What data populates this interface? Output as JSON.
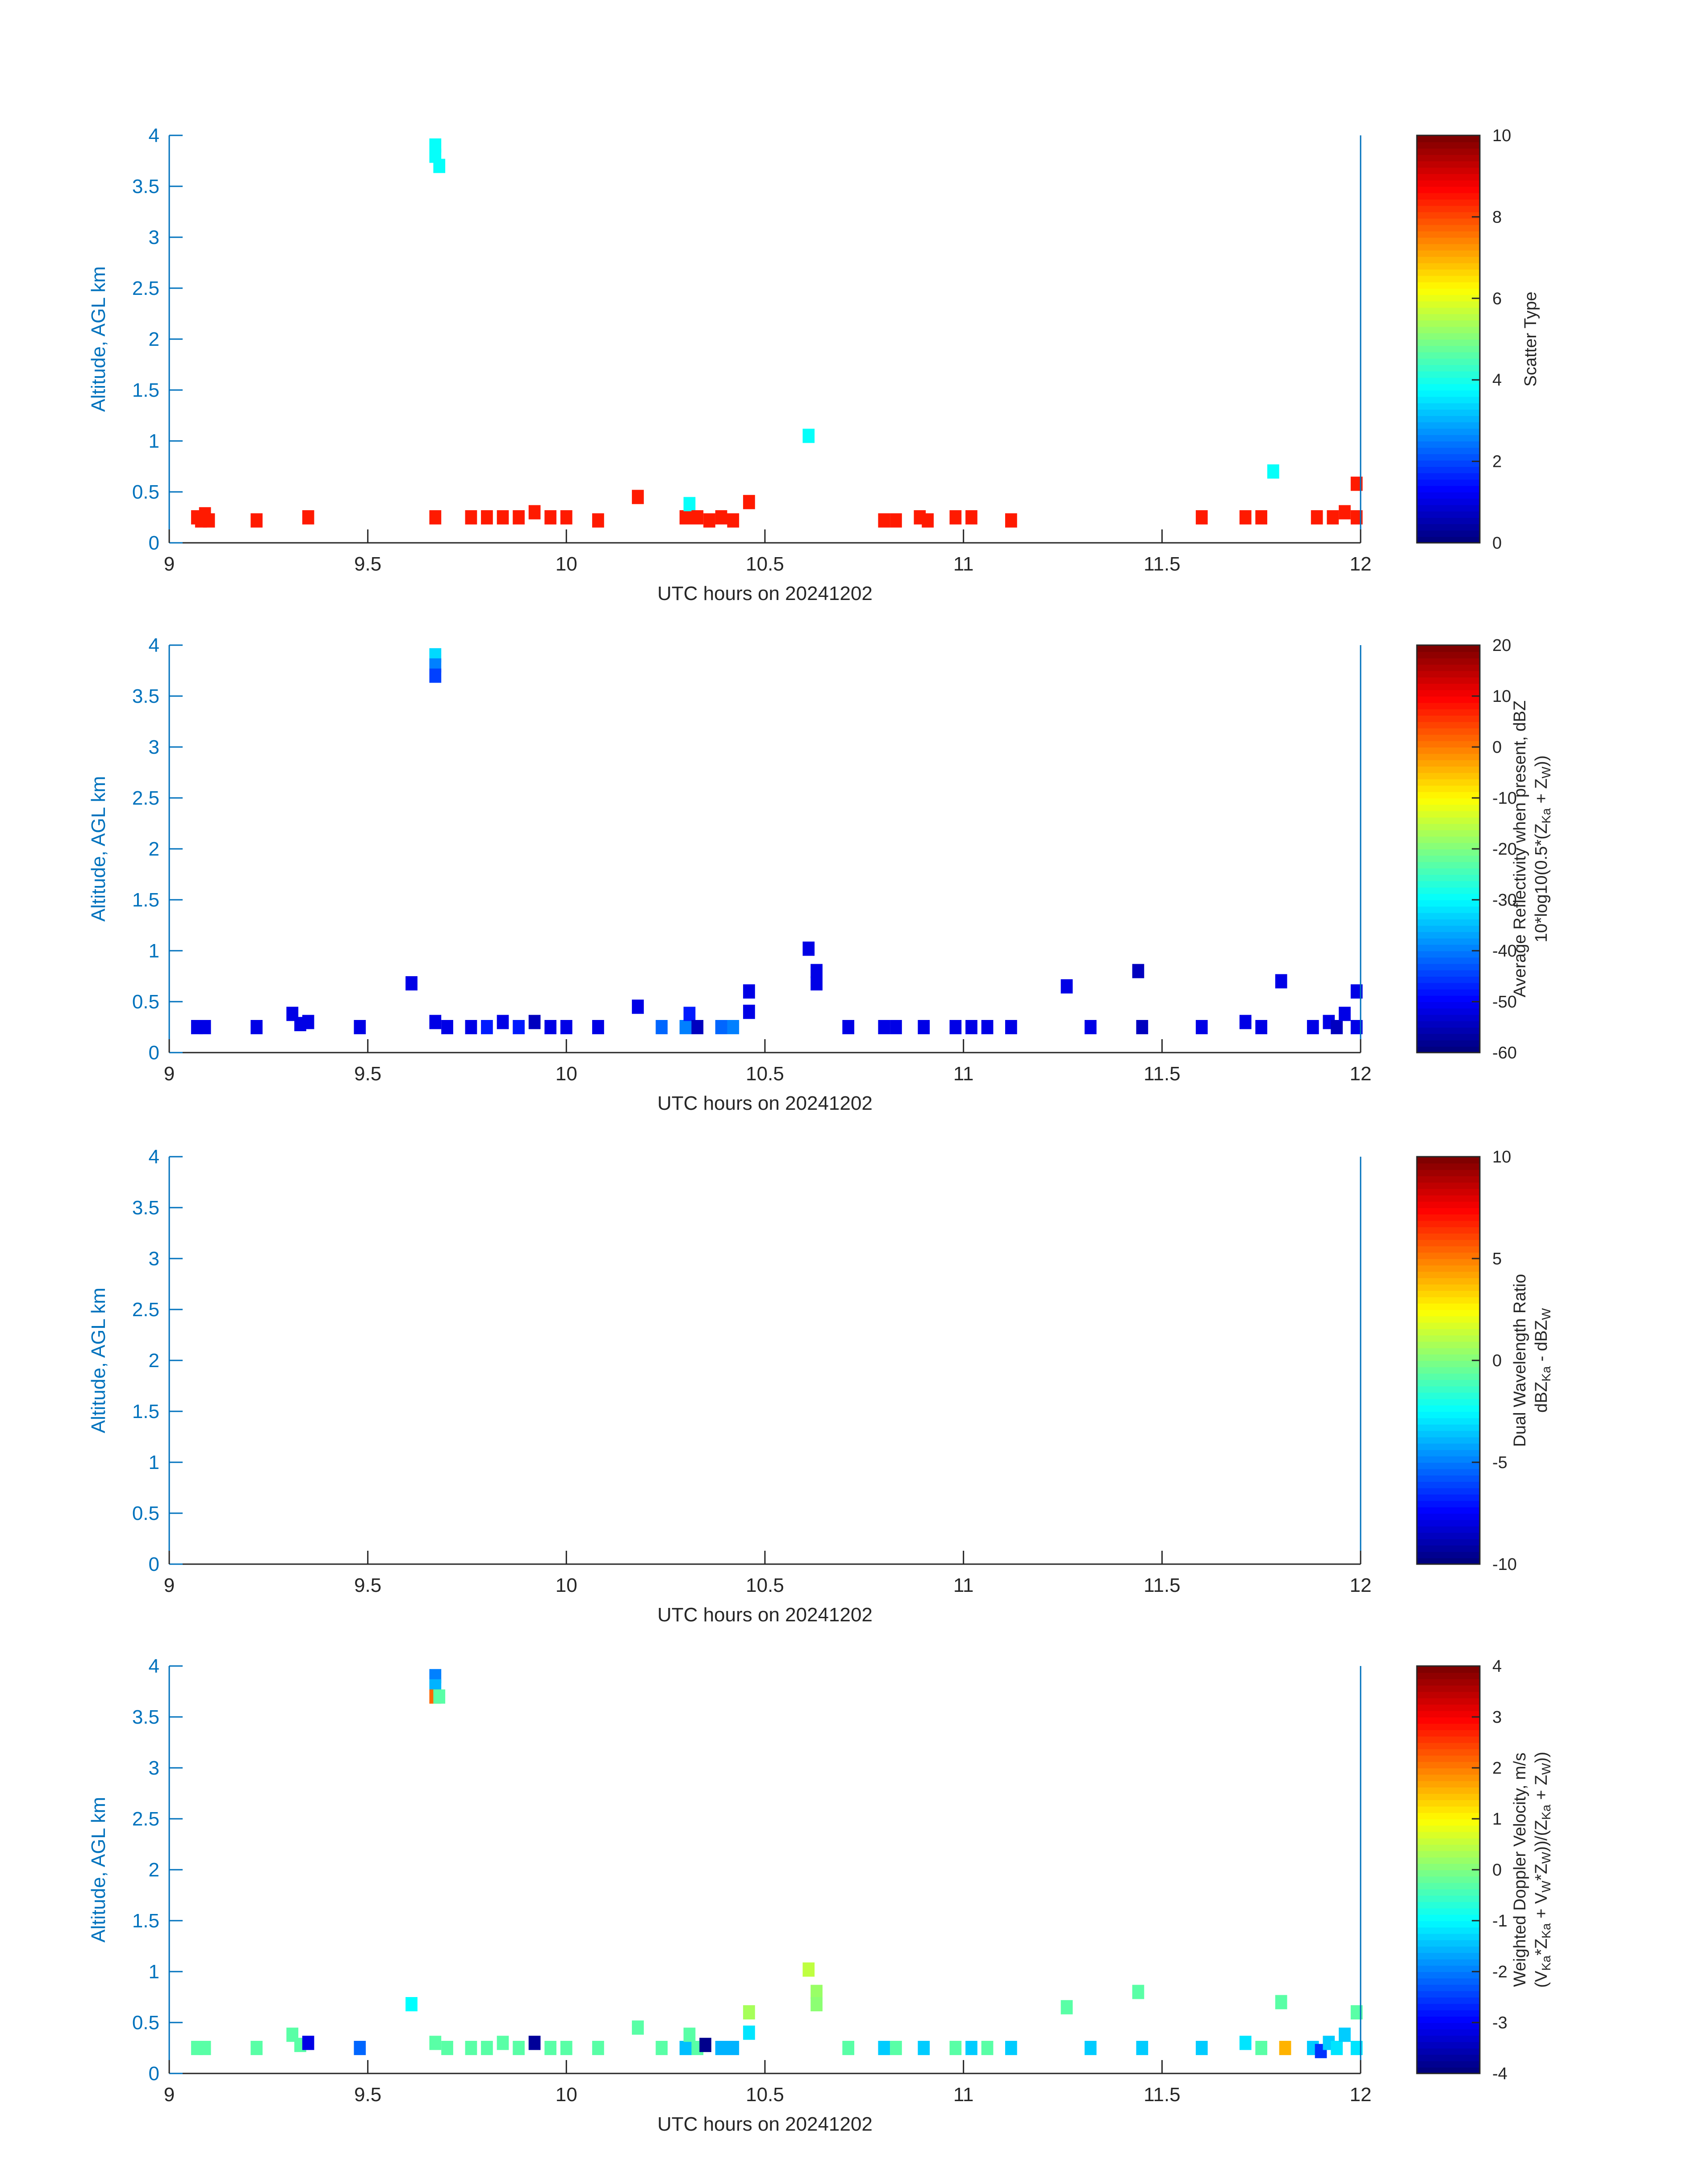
{
  "chart_data": [
    {
      "type": "heatmap",
      "xlabel": "UTC hours on 20241202",
      "ylabel": "Altitude, AGL km",
      "xlim": [
        9,
        12
      ],
      "ylim": [
        0,
        4
      ],
      "xticks": [
        "9",
        "9.5",
        "10",
        "10.5",
        "11",
        "11.5",
        "12"
      ],
      "yticks": [
        "0",
        "0.5",
        "1",
        "1.5",
        "2",
        "2.5",
        "3",
        "3.5",
        "4"
      ],
      "colorbar": {
        "label_lines": [
          [
            {
              "t": "Scatter Type"
            }
          ]
        ],
        "range": [
          0,
          10
        ],
        "ticks": [
          "0",
          "2",
          "4",
          "6",
          "8",
          "10"
        ]
      },
      "cells": [
        [
          9.07,
          0.25,
          8.5
        ],
        [
          9.08,
          0.22,
          8.5
        ],
        [
          9.09,
          0.28,
          8.5
        ],
        [
          9.1,
          0.22,
          8.5
        ],
        [
          9.22,
          0.22,
          8.5
        ],
        [
          9.35,
          0.25,
          8.5
        ],
        [
          9.67,
          3.9,
          3.8
        ],
        [
          9.67,
          3.8,
          3.8
        ],
        [
          9.68,
          3.7,
          3.8
        ],
        [
          9.67,
          0.25,
          8.5
        ],
        [
          9.76,
          0.25,
          8.5
        ],
        [
          9.8,
          0.25,
          8.5
        ],
        [
          9.84,
          0.25,
          8.5
        ],
        [
          9.88,
          0.25,
          8.5
        ],
        [
          9.92,
          0.3,
          8.5
        ],
        [
          9.96,
          0.25,
          8.5
        ],
        [
          10.0,
          0.25,
          8.5
        ],
        [
          10.08,
          0.22,
          8.5
        ],
        [
          10.18,
          0.45,
          8.5
        ],
        [
          10.3,
          0.25,
          8.5
        ],
        [
          10.31,
          0.38,
          3.8
        ],
        [
          10.33,
          0.25,
          8.5
        ],
        [
          10.36,
          0.22,
          8.5
        ],
        [
          10.39,
          0.25,
          8.5
        ],
        [
          10.42,
          0.22,
          8.5
        ],
        [
          10.46,
          0.4,
          8.5
        ],
        [
          10.61,
          1.05,
          3.8
        ],
        [
          10.8,
          0.22,
          8.5
        ],
        [
          10.83,
          0.22,
          8.5
        ],
        [
          10.89,
          0.25,
          8.5
        ],
        [
          10.91,
          0.22,
          8.5
        ],
        [
          10.98,
          0.25,
          8.5
        ],
        [
          11.02,
          0.25,
          8.5
        ],
        [
          11.12,
          0.22,
          8.5
        ],
        [
          11.6,
          0.25,
          8.5
        ],
        [
          11.71,
          0.25,
          8.5
        ],
        [
          11.75,
          0.25,
          8.5
        ],
        [
          11.78,
          0.7,
          3.8
        ],
        [
          11.89,
          0.25,
          8.5
        ],
        [
          11.93,
          0.25,
          8.5
        ],
        [
          11.96,
          0.3,
          8.5
        ],
        [
          11.99,
          0.25,
          8.5
        ],
        [
          11.99,
          0.58,
          8.5
        ]
      ]
    },
    {
      "type": "heatmap",
      "xlabel": "UTC hours on 20241202",
      "ylabel": "Altitude, AGL km",
      "xlim": [
        9,
        12
      ],
      "ylim": [
        0,
        4
      ],
      "xticks": [
        "9",
        "9.5",
        "10",
        "10.5",
        "11",
        "11.5",
        "12"
      ],
      "yticks": [
        "0",
        "0.5",
        "1",
        "1.5",
        "2",
        "2.5",
        "3",
        "3.5",
        "4"
      ],
      "colorbar": {
        "label_lines": [
          [
            {
              "t": "Average Reflectivity when present, dBZ"
            }
          ],
          [
            {
              "t": "10*log10(0.5*(Z"
            },
            {
              "t": "Ka",
              "sub": true
            },
            {
              "t": " + Z"
            },
            {
              "t": "W",
              "sub": true
            },
            {
              "t": "))"
            }
          ]
        ],
        "range": [
          -60,
          20
        ],
        "ticks": [
          "-60",
          "-50",
          "-40",
          "-30",
          "-20",
          "-10",
          "0",
          "10",
          "20"
        ]
      },
      "cells": [
        [
          9.07,
          0.25,
          -52
        ],
        [
          9.09,
          0.25,
          -52
        ],
        [
          9.22,
          0.25,
          -52
        ],
        [
          9.31,
          0.38,
          -52
        ],
        [
          9.33,
          0.28,
          -52
        ],
        [
          9.35,
          0.3,
          -52
        ],
        [
          9.48,
          0.25,
          -52
        ],
        [
          9.61,
          0.68,
          -52
        ],
        [
          9.67,
          3.9,
          -33
        ],
        [
          9.67,
          3.8,
          -40
        ],
        [
          9.67,
          3.7,
          -45
        ],
        [
          9.67,
          0.3,
          -52
        ],
        [
          9.7,
          0.25,
          -52
        ],
        [
          9.76,
          0.25,
          -52
        ],
        [
          9.8,
          0.25,
          -48
        ],
        [
          9.84,
          0.3,
          -52
        ],
        [
          9.88,
          0.25,
          -48
        ],
        [
          9.92,
          0.3,
          -55
        ],
        [
          9.96,
          0.25,
          -52
        ],
        [
          10.0,
          0.25,
          -52
        ],
        [
          10.08,
          0.25,
          -52
        ],
        [
          10.18,
          0.45,
          -52
        ],
        [
          10.24,
          0.25,
          -42
        ],
        [
          10.3,
          0.25,
          -40
        ],
        [
          10.31,
          0.38,
          -48
        ],
        [
          10.33,
          0.25,
          -55
        ],
        [
          10.39,
          0.25,
          -42
        ],
        [
          10.42,
          0.25,
          -40
        ],
        [
          10.46,
          0.4,
          -52
        ],
        [
          10.46,
          0.6,
          -52
        ],
        [
          10.61,
          1.02,
          -52
        ],
        [
          10.63,
          0.8,
          -52
        ],
        [
          10.63,
          0.68,
          -52
        ],
        [
          10.71,
          0.25,
          -52
        ],
        [
          10.8,
          0.25,
          -52
        ],
        [
          10.83,
          0.25,
          -52
        ],
        [
          10.9,
          0.25,
          -52
        ],
        [
          10.98,
          0.25,
          -52
        ],
        [
          11.02,
          0.25,
          -52
        ],
        [
          11.06,
          0.25,
          -52
        ],
        [
          11.12,
          0.25,
          -52
        ],
        [
          11.26,
          0.65,
          -52
        ],
        [
          11.32,
          0.25,
          -52
        ],
        [
          11.44,
          0.8,
          -55
        ],
        [
          11.45,
          0.25,
          -55
        ],
        [
          11.6,
          0.25,
          -52
        ],
        [
          11.71,
          0.3,
          -52
        ],
        [
          11.75,
          0.25,
          -52
        ],
        [
          11.8,
          0.7,
          -52
        ],
        [
          11.88,
          0.25,
          -52
        ],
        [
          11.92,
          0.3,
          -52
        ],
        [
          11.94,
          0.25,
          -55
        ],
        [
          11.96,
          0.38,
          -52
        ],
        [
          11.99,
          0.25,
          -52
        ],
        [
          11.99,
          0.6,
          -52
        ]
      ]
    },
    {
      "type": "heatmap",
      "xlabel": "UTC hours on 20241202",
      "ylabel": "Altitude, AGL km",
      "xlim": [
        9,
        12
      ],
      "ylim": [
        0,
        4
      ],
      "xticks": [
        "9",
        "9.5",
        "10",
        "10.5",
        "11",
        "11.5",
        "12"
      ],
      "yticks": [
        "0",
        "0.5",
        "1",
        "1.5",
        "2",
        "2.5",
        "3",
        "3.5",
        "4"
      ],
      "colorbar": {
        "label_lines": [
          [
            {
              "t": "Dual Wavelength Ratio"
            }
          ],
          [
            {
              "t": "dBZ"
            },
            {
              "t": "Ka",
              "sub": true
            },
            {
              "t": " - dBZ"
            },
            {
              "t": "W",
              "sub": true
            }
          ]
        ],
        "range": [
          -10,
          10
        ],
        "ticks": [
          "-10",
          "-5",
          "0",
          "5",
          "10"
        ]
      },
      "cells": []
    },
    {
      "type": "heatmap",
      "xlabel": "UTC hours on 20241202",
      "ylabel": "Altitude, AGL km",
      "xlim": [
        9,
        12
      ],
      "ylim": [
        0,
        4
      ],
      "xticks": [
        "9",
        "9.5",
        "10",
        "10.5",
        "11",
        "11.5",
        "12"
      ],
      "yticks": [
        "0",
        "0.5",
        "1",
        "1.5",
        "2",
        "2.5",
        "3",
        "3.5",
        "4"
      ],
      "colorbar": {
        "label_lines": [
          [
            {
              "t": "Weighted Doppler Velocity, m/s"
            }
          ],
          [
            {
              "t": "(V"
            },
            {
              "t": "Ka",
              "sub": true
            },
            {
              "t": "*Z"
            },
            {
              "t": "Ka",
              "sub": true
            },
            {
              "t": " + V"
            },
            {
              "t": "W",
              "sub": true
            },
            {
              "t": "*Z"
            },
            {
              "t": "W",
              "sub": true
            },
            {
              "t": "))/(Z"
            },
            {
              "t": "Ka",
              "sub": true
            },
            {
              "t": " + Z"
            },
            {
              "t": "W",
              "sub": true
            },
            {
              "t": "))"
            }
          ]
        ],
        "range": [
          -4,
          4
        ],
        "ticks": [
          "-4",
          "-3",
          "-2",
          "-1",
          "0",
          "1",
          "2",
          "3",
          "4"
        ]
      },
      "cells": [
        [
          9.07,
          0.25,
          -0.3
        ],
        [
          9.09,
          0.25,
          -0.3
        ],
        [
          9.22,
          0.25,
          -0.3
        ],
        [
          9.31,
          0.38,
          -0.3
        ],
        [
          9.33,
          0.28,
          -0.3
        ],
        [
          9.35,
          0.3,
          -3.2
        ],
        [
          9.48,
          0.25,
          -2.2
        ],
        [
          9.61,
          0.68,
          -1.0
        ],
        [
          9.67,
          3.9,
          -2.0
        ],
        [
          9.67,
          3.8,
          -1.6
        ],
        [
          9.67,
          3.7,
          2.2
        ],
        [
          9.68,
          3.7,
          -0.3
        ],
        [
          9.67,
          0.3,
          -0.3
        ],
        [
          9.7,
          0.25,
          -0.3
        ],
        [
          9.76,
          0.25,
          -0.3
        ],
        [
          9.8,
          0.25,
          -0.3
        ],
        [
          9.84,
          0.3,
          -0.3
        ],
        [
          9.88,
          0.25,
          -0.3
        ],
        [
          9.92,
          0.3,
          -3.8
        ],
        [
          9.96,
          0.25,
          -0.3
        ],
        [
          10.0,
          0.25,
          -0.3
        ],
        [
          10.08,
          0.25,
          -0.3
        ],
        [
          10.18,
          0.45,
          -0.3
        ],
        [
          10.24,
          0.25,
          -0.3
        ],
        [
          10.3,
          0.25,
          -1.5
        ],
        [
          10.31,
          0.38,
          -0.3
        ],
        [
          10.33,
          0.25,
          -0.3
        ],
        [
          10.35,
          0.28,
          -3.9
        ],
        [
          10.39,
          0.25,
          -1.6
        ],
        [
          10.42,
          0.25,
          -1.6
        ],
        [
          10.46,
          0.4,
          -1.2
        ],
        [
          10.46,
          0.6,
          0.3
        ],
        [
          10.61,
          1.02,
          0.5
        ],
        [
          10.63,
          0.8,
          0.2
        ],
        [
          10.63,
          0.68,
          0.1
        ],
        [
          10.71,
          0.25,
          -0.3
        ],
        [
          10.8,
          0.25,
          -1.4
        ],
        [
          10.83,
          0.25,
          -0.3
        ],
        [
          10.9,
          0.25,
          -1.4
        ],
        [
          10.98,
          0.25,
          -0.3
        ],
        [
          11.02,
          0.25,
          -1.4
        ],
        [
          11.06,
          0.25,
          -0.3
        ],
        [
          11.12,
          0.25,
          -1.4
        ],
        [
          11.26,
          0.65,
          -0.3
        ],
        [
          11.32,
          0.25,
          -1.4
        ],
        [
          11.44,
          0.8,
          -0.3
        ],
        [
          11.45,
          0.25,
          -1.4
        ],
        [
          11.6,
          0.25,
          -1.4
        ],
        [
          11.71,
          0.3,
          -1.2
        ],
        [
          11.75,
          0.25,
          -0.3
        ],
        [
          11.8,
          0.7,
          -0.3
        ],
        [
          11.81,
          0.25,
          1.6
        ],
        [
          11.88,
          0.25,
          -1.4
        ],
        [
          11.9,
          0.22,
          -2.6
        ],
        [
          11.92,
          0.3,
          -1.4
        ],
        [
          11.94,
          0.25,
          -1.2
        ],
        [
          11.96,
          0.38,
          -1.4
        ],
        [
          11.99,
          0.25,
          -1.2
        ],
        [
          11.99,
          0.6,
          -0.3
        ]
      ]
    }
  ]
}
